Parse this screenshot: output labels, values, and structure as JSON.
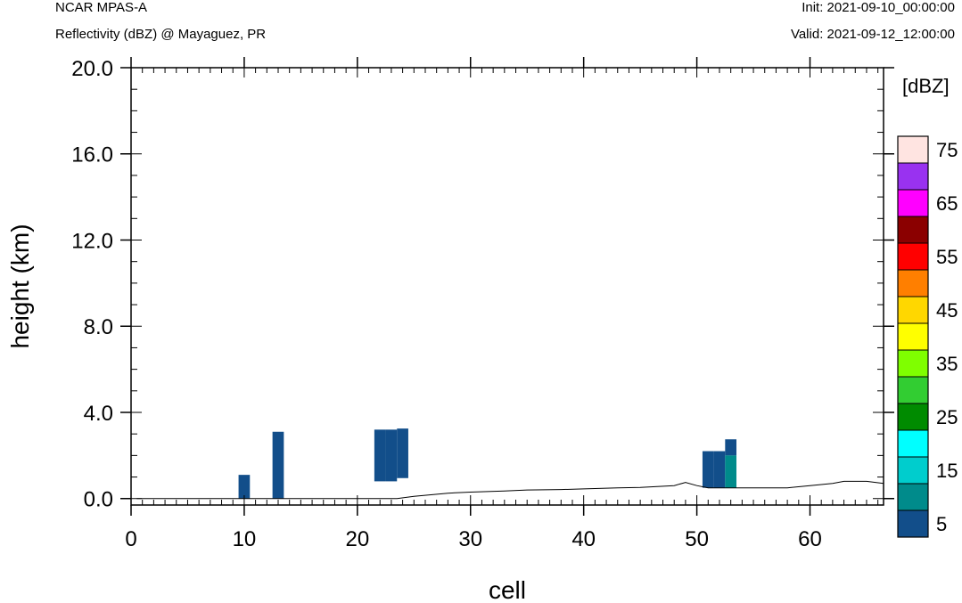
{
  "header": {
    "model": "NCAR MPAS-A",
    "field": "Reflectivity (dBZ) @ Mayaguez, PR",
    "init": "Init: 2021-09-10_00:00:00",
    "valid": "Valid: 2021-09-12_12:00:00"
  },
  "chart_data": {
    "type": "heatmap",
    "xlabel": "cell",
    "ylabel": "height (km)",
    "xlim": [
      0,
      66.5
    ],
    "ylim": [
      -0.3,
      20.0
    ],
    "x_ticks": [
      0,
      10,
      20,
      30,
      40,
      50,
      60
    ],
    "x_tick_labels": [
      "0",
      "10",
      "20",
      "30",
      "40",
      "50",
      "60"
    ],
    "y_ticks": [
      0,
      4,
      8,
      12,
      16,
      20
    ],
    "y_tick_labels": [
      "0.0",
      "4.0",
      "8.0",
      "12.0",
      "16.0",
      "20.0"
    ],
    "colorbar": {
      "unit_label": "[dBZ]",
      "levels": [
        5,
        10,
        15,
        20,
        25,
        30,
        35,
        40,
        45,
        50,
        55,
        60,
        65,
        70,
        75
      ],
      "colors": [
        "#124e8a",
        "#008b8b",
        "#00cdcd",
        "#00ffff",
        "#008b00",
        "#32cd32",
        "#7fff00",
        "#ffff00",
        "#ffd700",
        "#ff7f00",
        "#ff0000",
        "#8b0000",
        "#ff00ff",
        "#9932f0",
        "#ffe4e1"
      ],
      "tick_labels": [
        "5",
        "15",
        "25",
        "35",
        "45",
        "55",
        "65",
        "75"
      ]
    },
    "cells": [
      {
        "x0": 9.5,
        "x1": 10.5,
        "y0": 0.0,
        "y1": 1.1,
        "dbz": 5
      },
      {
        "x0": 12.5,
        "x1": 13.5,
        "y0": 0.0,
        "y1": 3.1,
        "dbz": 5
      },
      {
        "x0": 21.5,
        "x1": 22.5,
        "y0": 0.8,
        "y1": 3.2,
        "dbz": 5
      },
      {
        "x0": 22.5,
        "x1": 23.5,
        "y0": 0.8,
        "y1": 3.2,
        "dbz": 5
      },
      {
        "x0": 23.5,
        "x1": 24.5,
        "y0": 0.95,
        "y1": 3.25,
        "dbz": 5
      },
      {
        "x0": 50.5,
        "x1": 51.5,
        "y0": 0.5,
        "y1": 2.2,
        "dbz": 5
      },
      {
        "x0": 51.5,
        "x1": 52.5,
        "y0": 0.5,
        "y1": 2.2,
        "dbz": 5
      },
      {
        "x0": 52.5,
        "x1": 53.5,
        "y0": 2.0,
        "y1": 2.75,
        "dbz": 5
      },
      {
        "x0": 52.5,
        "x1": 53.5,
        "y0": 0.5,
        "y1": 2.0,
        "dbz": 10
      }
    ],
    "terrain": {
      "x": [
        0.5,
        5,
        10,
        15,
        20,
        23.5,
        25,
        28,
        30,
        33,
        35,
        38,
        40,
        43,
        45,
        48,
        49,
        50,
        51,
        52,
        53,
        54,
        56,
        58,
        60,
        62,
        63,
        65,
        66.5
      ],
      "y": [
        0.0,
        0.0,
        0.0,
        0.0,
        0.0,
        0.0,
        0.1,
        0.25,
        0.3,
        0.35,
        0.4,
        0.42,
        0.45,
        0.5,
        0.52,
        0.6,
        0.75,
        0.6,
        0.5,
        0.5,
        0.5,
        0.5,
        0.5,
        0.5,
        0.6,
        0.7,
        0.8,
        0.8,
        0.7
      ]
    }
  }
}
